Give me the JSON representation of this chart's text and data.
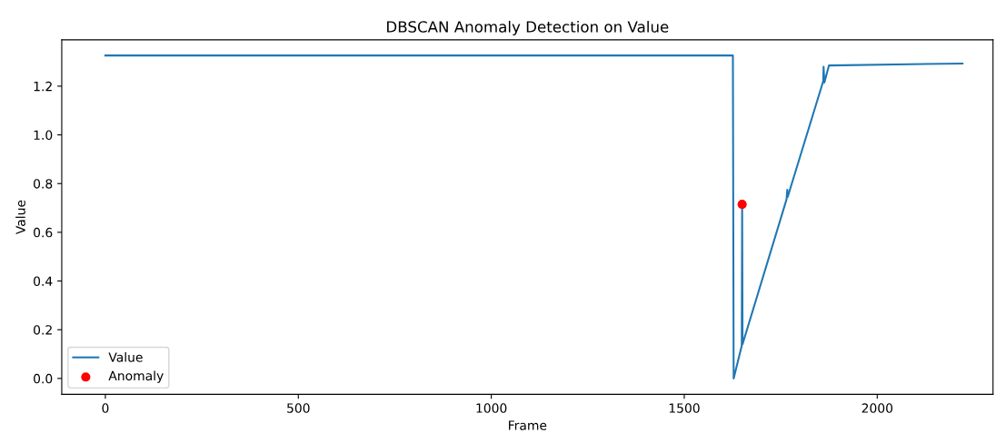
{
  "chart_data": {
    "type": "line",
    "title": "DBSCAN Anomaly Detection on Value",
    "xlabel": "Frame",
    "ylabel": "Value",
    "xlim": [
      -113,
      2300
    ],
    "ylim": [
      -0.065,
      1.39
    ],
    "xticks": [
      0,
      500,
      1000,
      1500,
      2000
    ],
    "yticks": [
      {
        "value": 0,
        "label": "0.0"
      },
      0.2,
      0.4,
      0.6,
      0.8,
      {
        "value": 1,
        "label": "1.0"
      },
      1.2
    ],
    "legend": "bottom left",
    "grid": false,
    "series": [
      {
        "name": "Value",
        "color": "#1f77b4",
        "x": [
          0,
          1626,
          1628,
          1649,
          1650,
          1651,
          1765,
          1767,
          1768,
          1860,
          1861,
          1863,
          1875,
          2221
        ],
        "values": [
          1.326,
          1.326,
          0.0,
          0.135,
          0.715,
          0.14,
          0.735,
          0.775,
          0.745,
          1.22,
          1.28,
          1.215,
          1.285,
          1.293
        ]
      },
      {
        "name": "Anomaly",
        "type": "scatter",
        "color": "#ff0000",
        "x": [
          1650
        ],
        "values": [
          0.715
        ]
      }
    ]
  }
}
